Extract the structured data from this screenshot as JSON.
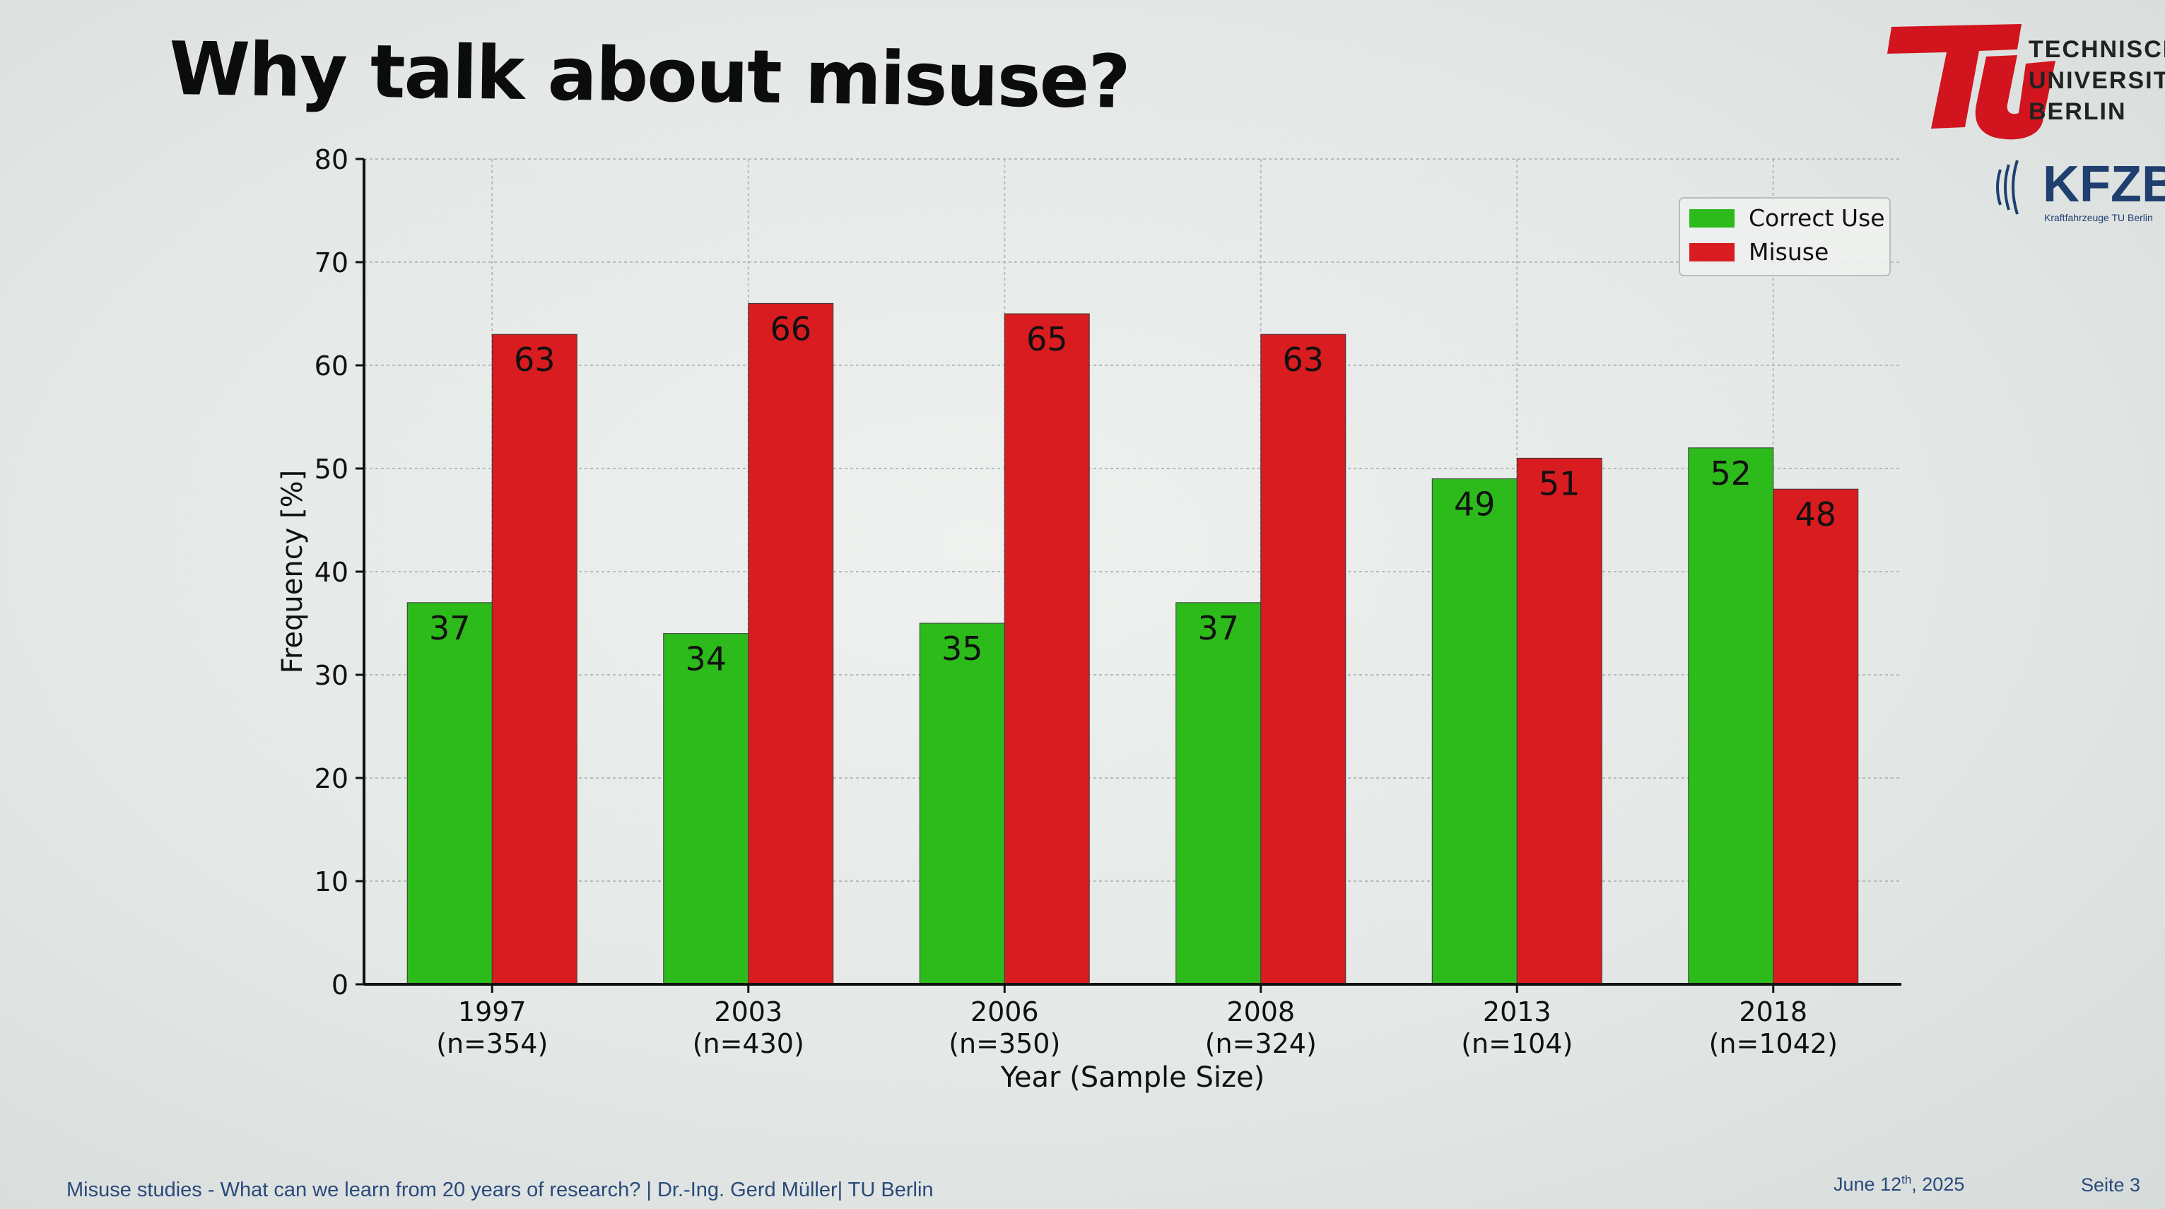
{
  "slide": {
    "title": "Why talk about misuse?",
    "footer": "Misuse studies - What can we learn from 20 years of research? | Dr.-Ing. Gerd Müller| TU Berlin",
    "date_main": "June 12",
    "date_sup": "th",
    "date_year": ", 2025",
    "page": "Seite 3"
  },
  "logos": {
    "tu": {
      "line1": "TECHNISCHE",
      "line2": "UNIVERSITÄT",
      "line3": "BERLIN",
      "color": "#d2141e"
    },
    "kfz": {
      "text": "KFZB",
      "subtext": "Kraftfahrzeuge TU Berlin",
      "color": "#1f3f6e"
    }
  },
  "chart_data": {
    "type": "bar",
    "categories": [
      "1997",
      "2003",
      "2006",
      "2008",
      "2013",
      "2018"
    ],
    "category_sublabels": [
      "(n=354)",
      "(n=430)",
      "(n=350)",
      "(n=324)",
      "(n=104)",
      "(n=1042)"
    ],
    "series": [
      {
        "name": "Correct Use",
        "color": "#2dbb1c",
        "values": [
          37,
          34,
          35,
          37,
          49,
          52
        ],
        "labels": [
          "37",
          "34",
          "35",
          "37",
          "49",
          "52"
        ]
      },
      {
        "name": "Misuse",
        "color": "#d81c1f",
        "values": [
          63,
          66,
          65,
          63,
          51,
          48
        ],
        "labels": [
          "63",
          "66",
          "65",
          "63",
          "51",
          "48"
        ]
      }
    ],
    "xlabel": "Year (Sample Size)",
    "ylabel": "Frequency [%]",
    "ylim": [
      0,
      80
    ],
    "yticks": [
      "0",
      "10",
      "20",
      "30",
      "40",
      "50",
      "60",
      "70",
      "80"
    ],
    "grid": true,
    "legend_position": "top-right"
  }
}
